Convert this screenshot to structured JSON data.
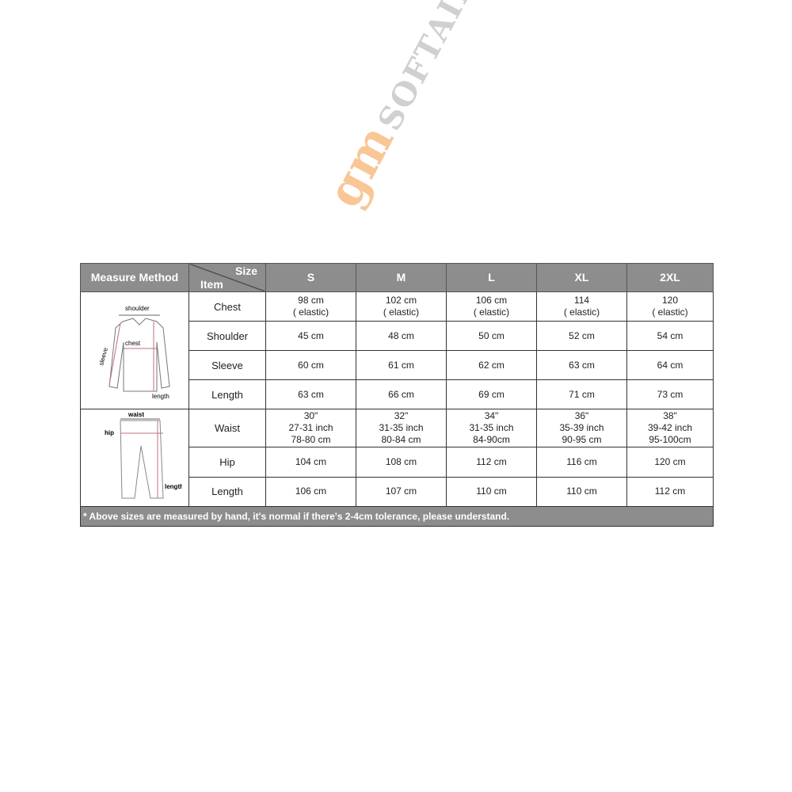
{
  "header": {
    "measure_method": "Measure Method",
    "size": "Size",
    "item": "Item",
    "sizes": [
      "S",
      "M",
      "L",
      "XL",
      "2XL"
    ]
  },
  "shirt_labels": {
    "shoulder": "shoulder",
    "chest": "chest",
    "sleeve": "sleeve",
    "length": "length"
  },
  "pants_labels": {
    "waist": "waist",
    "hip": "hip",
    "length": "length"
  },
  "rows": [
    {
      "item": "Chest",
      "values": [
        [
          "98 cm",
          "( elastic)"
        ],
        [
          "102 cm",
          "( elastic)"
        ],
        [
          "106 cm",
          "( elastic)"
        ],
        [
          "114",
          "( elastic)"
        ],
        [
          "120",
          "( elastic)"
        ]
      ]
    },
    {
      "item": "Shoulder",
      "values": [
        [
          "45 cm"
        ],
        [
          "48 cm"
        ],
        [
          "50 cm"
        ],
        [
          "52 cm"
        ],
        [
          "54 cm"
        ]
      ]
    },
    {
      "item": "Sleeve",
      "values": [
        [
          "60 cm"
        ],
        [
          "61 cm"
        ],
        [
          "62 cm"
        ],
        [
          "63 cm"
        ],
        [
          "64 cm"
        ]
      ]
    },
    {
      "item": "Length",
      "values": [
        [
          "63 cm"
        ],
        [
          "66 cm"
        ],
        [
          "69 cm"
        ],
        [
          "71 cm"
        ],
        [
          "73 cm"
        ]
      ]
    },
    {
      "item": "Waist",
      "values": [
        [
          "30\"",
          "27-31 inch",
          "78-80 cm"
        ],
        [
          "32\"",
          "31-35 inch",
          "80-84 cm"
        ],
        [
          "34\"",
          "31-35 inch",
          "84-90cm"
        ],
        [
          "36\"",
          "35-39 inch",
          "90-95 cm"
        ],
        [
          "38\"",
          "39-42 inch",
          "95-100cm"
        ]
      ]
    },
    {
      "item": "Hip",
      "values": [
        [
          "104 cm"
        ],
        [
          "108 cm"
        ],
        [
          "112 cm"
        ],
        [
          "116 cm"
        ],
        [
          "120 cm"
        ]
      ]
    },
    {
      "item": "Length",
      "values": [
        [
          "106 cm"
        ],
        [
          "107 cm"
        ],
        [
          "110 cm"
        ],
        [
          "110 cm"
        ],
        [
          "112 cm"
        ]
      ]
    }
  ],
  "footer": "* Above sizes are measured by hand, it's normal if there's 2-4cm tolerance, please understand.",
  "watermark": {
    "brand1": "gm",
    "brand2": "SOFTAIR"
  },
  "colors": {
    "header_bg": "#8d8d8d",
    "measure_line": "#c0707a"
  }
}
